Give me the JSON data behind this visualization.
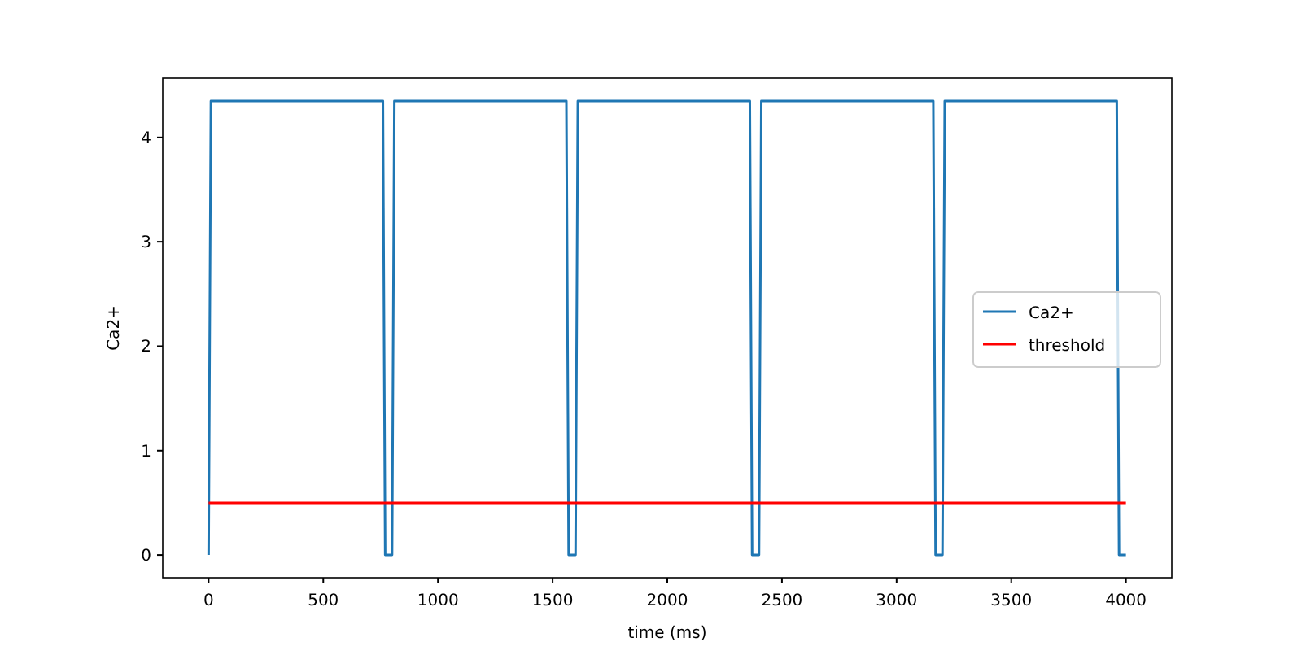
{
  "chart_data": {
    "type": "line",
    "xlabel": "time (ms)",
    "ylabel": "Ca2+",
    "xlim": [
      -200,
      4200
    ],
    "xticks": [
      0,
      500,
      1000,
      1500,
      2000,
      2500,
      3000,
      3500,
      4000
    ],
    "ylim": [
      -0.2175,
      4.5675
    ],
    "yticks": [
      0,
      1,
      2,
      3,
      4
    ],
    "legend": "right",
    "grid": false,
    "series": [
      {
        "name": "Ca2+",
        "color": "#1f77b4",
        "x": [
          0,
          10,
          760,
          770,
          800,
          810,
          1560,
          1570,
          1600,
          1610,
          2360,
          2370,
          2400,
          2410,
          3160,
          3170,
          3200,
          3210,
          3960,
          3970,
          4000
        ],
        "values": [
          0,
          4.35,
          4.35,
          0,
          0,
          4.35,
          4.35,
          0,
          0,
          4.35,
          4.35,
          0,
          0,
          4.35,
          4.35,
          0,
          0,
          4.35,
          4.35,
          0,
          0
        ]
      },
      {
        "name": "threshold",
        "color": "#ff0000",
        "x": [
          0,
          4000
        ],
        "values": [
          0.5,
          0.5
        ]
      }
    ]
  }
}
